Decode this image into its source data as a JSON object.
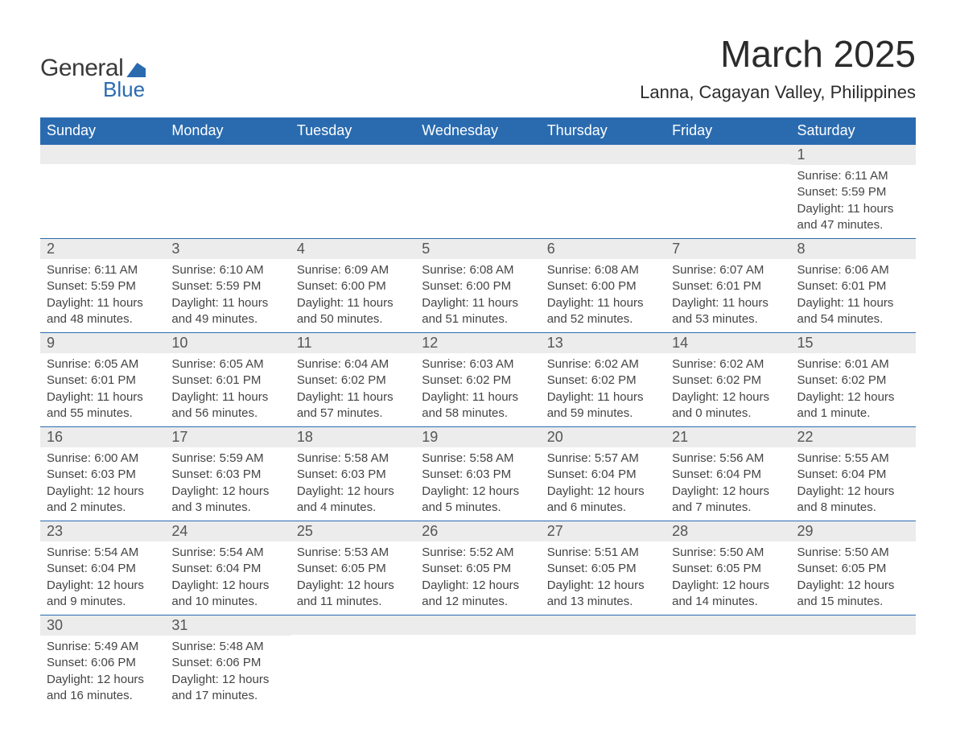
{
  "logo": {
    "text_general": "General",
    "text_blue": "Blue"
  },
  "title": "March 2025",
  "location": "Lanna, Cagayan Valley, Philippines",
  "colors": {
    "header_bg": "#2a6bb0",
    "header_text": "#ffffff",
    "daynum_bg": "#ececec",
    "body_text": "#444444",
    "rule": "#2a6bb0"
  },
  "weekdays": [
    "Sunday",
    "Monday",
    "Tuesday",
    "Wednesday",
    "Thursday",
    "Friday",
    "Saturday"
  ],
  "weeks": [
    [
      {
        "day": "",
        "lines": []
      },
      {
        "day": "",
        "lines": []
      },
      {
        "day": "",
        "lines": []
      },
      {
        "day": "",
        "lines": []
      },
      {
        "day": "",
        "lines": []
      },
      {
        "day": "",
        "lines": []
      },
      {
        "day": "1",
        "lines": [
          "Sunrise: 6:11 AM",
          "Sunset: 5:59 PM",
          "Daylight: 11 hours and 47 minutes."
        ]
      }
    ],
    [
      {
        "day": "2",
        "lines": [
          "Sunrise: 6:11 AM",
          "Sunset: 5:59 PM",
          "Daylight: 11 hours and 48 minutes."
        ]
      },
      {
        "day": "3",
        "lines": [
          "Sunrise: 6:10 AM",
          "Sunset: 5:59 PM",
          "Daylight: 11 hours and 49 minutes."
        ]
      },
      {
        "day": "4",
        "lines": [
          "Sunrise: 6:09 AM",
          "Sunset: 6:00 PM",
          "Daylight: 11 hours and 50 minutes."
        ]
      },
      {
        "day": "5",
        "lines": [
          "Sunrise: 6:08 AM",
          "Sunset: 6:00 PM",
          "Daylight: 11 hours and 51 minutes."
        ]
      },
      {
        "day": "6",
        "lines": [
          "Sunrise: 6:08 AM",
          "Sunset: 6:00 PM",
          "Daylight: 11 hours and 52 minutes."
        ]
      },
      {
        "day": "7",
        "lines": [
          "Sunrise: 6:07 AM",
          "Sunset: 6:01 PM",
          "Daylight: 11 hours and 53 minutes."
        ]
      },
      {
        "day": "8",
        "lines": [
          "Sunrise: 6:06 AM",
          "Sunset: 6:01 PM",
          "Daylight: 11 hours and 54 minutes."
        ]
      }
    ],
    [
      {
        "day": "9",
        "lines": [
          "Sunrise: 6:05 AM",
          "Sunset: 6:01 PM",
          "Daylight: 11 hours and 55 minutes."
        ]
      },
      {
        "day": "10",
        "lines": [
          "Sunrise: 6:05 AM",
          "Sunset: 6:01 PM",
          "Daylight: 11 hours and 56 minutes."
        ]
      },
      {
        "day": "11",
        "lines": [
          "Sunrise: 6:04 AM",
          "Sunset: 6:02 PM",
          "Daylight: 11 hours and 57 minutes."
        ]
      },
      {
        "day": "12",
        "lines": [
          "Sunrise: 6:03 AM",
          "Sunset: 6:02 PM",
          "Daylight: 11 hours and 58 minutes."
        ]
      },
      {
        "day": "13",
        "lines": [
          "Sunrise: 6:02 AM",
          "Sunset: 6:02 PM",
          "Daylight: 11 hours and 59 minutes."
        ]
      },
      {
        "day": "14",
        "lines": [
          "Sunrise: 6:02 AM",
          "Sunset: 6:02 PM",
          "Daylight: 12 hours and 0 minutes."
        ]
      },
      {
        "day": "15",
        "lines": [
          "Sunrise: 6:01 AM",
          "Sunset: 6:02 PM",
          "Daylight: 12 hours and 1 minute."
        ]
      }
    ],
    [
      {
        "day": "16",
        "lines": [
          "Sunrise: 6:00 AM",
          "Sunset: 6:03 PM",
          "Daylight: 12 hours and 2 minutes."
        ]
      },
      {
        "day": "17",
        "lines": [
          "Sunrise: 5:59 AM",
          "Sunset: 6:03 PM",
          "Daylight: 12 hours and 3 minutes."
        ]
      },
      {
        "day": "18",
        "lines": [
          "Sunrise: 5:58 AM",
          "Sunset: 6:03 PM",
          "Daylight: 12 hours and 4 minutes."
        ]
      },
      {
        "day": "19",
        "lines": [
          "Sunrise: 5:58 AM",
          "Sunset: 6:03 PM",
          "Daylight: 12 hours and 5 minutes."
        ]
      },
      {
        "day": "20",
        "lines": [
          "Sunrise: 5:57 AM",
          "Sunset: 6:04 PM",
          "Daylight: 12 hours and 6 minutes."
        ]
      },
      {
        "day": "21",
        "lines": [
          "Sunrise: 5:56 AM",
          "Sunset: 6:04 PM",
          "Daylight: 12 hours and 7 minutes."
        ]
      },
      {
        "day": "22",
        "lines": [
          "Sunrise: 5:55 AM",
          "Sunset: 6:04 PM",
          "Daylight: 12 hours and 8 minutes."
        ]
      }
    ],
    [
      {
        "day": "23",
        "lines": [
          "Sunrise: 5:54 AM",
          "Sunset: 6:04 PM",
          "Daylight: 12 hours and 9 minutes."
        ]
      },
      {
        "day": "24",
        "lines": [
          "Sunrise: 5:54 AM",
          "Sunset: 6:04 PM",
          "Daylight: 12 hours and 10 minutes."
        ]
      },
      {
        "day": "25",
        "lines": [
          "Sunrise: 5:53 AM",
          "Sunset: 6:05 PM",
          "Daylight: 12 hours and 11 minutes."
        ]
      },
      {
        "day": "26",
        "lines": [
          "Sunrise: 5:52 AM",
          "Sunset: 6:05 PM",
          "Daylight: 12 hours and 12 minutes."
        ]
      },
      {
        "day": "27",
        "lines": [
          "Sunrise: 5:51 AM",
          "Sunset: 6:05 PM",
          "Daylight: 12 hours and 13 minutes."
        ]
      },
      {
        "day": "28",
        "lines": [
          "Sunrise: 5:50 AM",
          "Sunset: 6:05 PM",
          "Daylight: 12 hours and 14 minutes."
        ]
      },
      {
        "day": "29",
        "lines": [
          "Sunrise: 5:50 AM",
          "Sunset: 6:05 PM",
          "Daylight: 12 hours and 15 minutes."
        ]
      }
    ],
    [
      {
        "day": "30",
        "lines": [
          "Sunrise: 5:49 AM",
          "Sunset: 6:06 PM",
          "Daylight: 12 hours and 16 minutes."
        ]
      },
      {
        "day": "31",
        "lines": [
          "Sunrise: 5:48 AM",
          "Sunset: 6:06 PM",
          "Daylight: 12 hours and 17 minutes."
        ]
      },
      {
        "day": "",
        "lines": []
      },
      {
        "day": "",
        "lines": []
      },
      {
        "day": "",
        "lines": []
      },
      {
        "day": "",
        "lines": []
      },
      {
        "day": "",
        "lines": []
      }
    ]
  ]
}
